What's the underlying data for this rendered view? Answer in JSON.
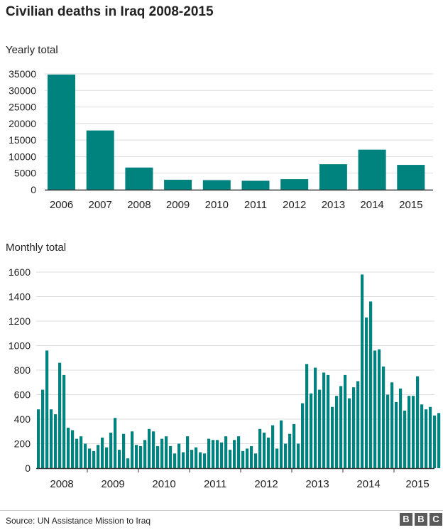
{
  "title": "Civilian deaths in Iraq 2008-2015",
  "source": "Source: UN Assistance Mission to Iraq",
  "logo": [
    "B",
    "B",
    "C"
  ],
  "colors": {
    "bar": "#00827f",
    "grid": "#dddddd",
    "axis": "#333333",
    "text": "#222222"
  },
  "chart_data": [
    {
      "type": "bar",
      "subtitle": "Yearly total",
      "categories": [
        "2006",
        "2007",
        "2008",
        "2009",
        "2010",
        "2011",
        "2012",
        "2013",
        "2014",
        "2015"
      ],
      "values": [
        34800,
        17900,
        6700,
        3000,
        2900,
        2700,
        3200,
        7700,
        12100,
        7500
      ],
      "yticks": [
        0,
        5000,
        10000,
        15000,
        20000,
        25000,
        30000,
        35000
      ],
      "ylim": [
        0,
        35000
      ],
      "xlabel": "",
      "ylabel": ""
    },
    {
      "type": "bar",
      "subtitle": "Monthly total",
      "year_labels": [
        "2008",
        "2009",
        "2010",
        "2011",
        "2012",
        "2013",
        "2014",
        "2015"
      ],
      "values": [
        480,
        640,
        960,
        480,
        440,
        860,
        760,
        330,
        310,
        240,
        260,
        200,
        160,
        140,
        190,
        250,
        170,
        290,
        410,
        150,
        280,
        80,
        300,
        190,
        180,
        230,
        320,
        300,
        180,
        240,
        260,
        180,
        120,
        200,
        130,
        260,
        150,
        170,
        130,
        120,
        240,
        230,
        230,
        210,
        260,
        150,
        230,
        260,
        140,
        160,
        180,
        120,
        320,
        290,
        250,
        350,
        160,
        390,
        200,
        280,
        360,
        200,
        530,
        850,
        610,
        820,
        640,
        780,
        760,
        500,
        590,
        670,
        760,
        570,
        660,
        710,
        1580,
        1230,
        1360,
        960,
        970,
        830,
        600,
        700,
        540,
        650,
        470,
        590,
        590,
        750,
        520,
        480,
        500,
        430,
        450
      ],
      "yticks": [
        0,
        200,
        400,
        600,
        800,
        1000,
        1200,
        1400,
        1600
      ],
      "ylim": [
        0,
        1600
      ],
      "xlabel": "",
      "ylabel": ""
    }
  ]
}
